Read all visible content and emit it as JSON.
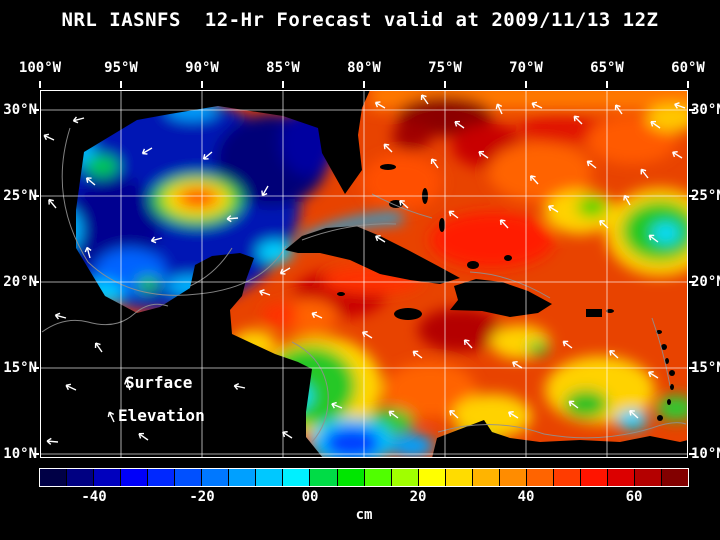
{
  "title": "NRL IASNFS  12-Hr Forecast valid at 2009/11/13 12Z",
  "map": {
    "lon_labels": [
      "100°W",
      "95°W",
      "90°W",
      "85°W",
      "80°W",
      "75°W",
      "70°W",
      "65°W",
      "60°W"
    ],
    "lat_labels": [
      "30°N",
      "25°N",
      "20°N",
      "15°N",
      "10°N"
    ],
    "annotation_line1": "Surface",
    "annotation_line2": "Elevation"
  },
  "colorbar": {
    "unit": "cm",
    "ticks": [
      "-40",
      "-20",
      "00",
      "20",
      "40",
      "60"
    ],
    "segments": [
      "#000046",
      "#000082",
      "#0000be",
      "#0000fa",
      "#0028ff",
      "#0050ff",
      "#0078ff",
      "#00a0ff",
      "#00c8ff",
      "#00f0ff",
      "#00dc46",
      "#00e600",
      "#50ff00",
      "#a0ff00",
      "#ffff00",
      "#ffdc00",
      "#ffb400",
      "#ff8c00",
      "#ff6400",
      "#ff3c00",
      "#ff1400",
      "#dc0000",
      "#b40000",
      "#820000"
    ]
  },
  "chart_data": {
    "type": "heatmap",
    "title": "NRL IASNFS  12-Hr Forecast valid at 2009/11/13 12Z",
    "variable": "Surface Elevation",
    "unit": "cm",
    "colorbar_ticks": [
      "-40",
      "-20",
      "00",
      "20",
      "40",
      "60"
    ],
    "lon_ticks": [
      "100°W",
      "95°W",
      "90°W",
      "85°W",
      "80°W",
      "75°W",
      "70°W",
      "65°W",
      "60°W"
    ],
    "lat_ticks": [
      "30°N",
      "25°N",
      "20°N",
      "15°N",
      "10°N"
    ]
  }
}
